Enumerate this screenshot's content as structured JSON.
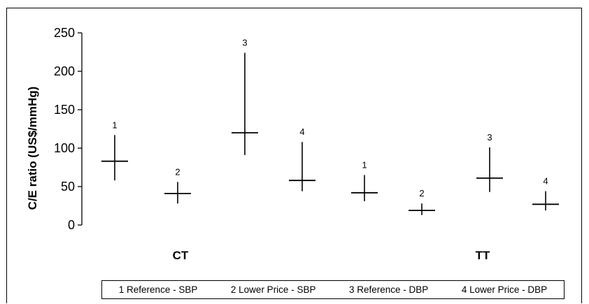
{
  "chart_data": {
    "type": "high-low-point",
    "ylabel": "C/E ratio (US$/mmHg)",
    "ylim": [
      0,
      250
    ],
    "yticks": [
      0,
      50,
      100,
      150,
      200,
      250
    ],
    "groups": [
      "CT",
      "TT"
    ],
    "series_keys": [
      "1",
      "2",
      "3",
      "4"
    ],
    "points": [
      {
        "group": "CT",
        "key": "1",
        "value": 83,
        "low": 58,
        "high": 117
      },
      {
        "group": "CT",
        "key": "2",
        "value": 41,
        "low": 28,
        "high": 56
      },
      {
        "group": "CT",
        "key": "3",
        "value": 120,
        "low": 91,
        "high": 224
      },
      {
        "group": "CT",
        "key": "4",
        "value": 58,
        "low": 44,
        "high": 108
      },
      {
        "group": "TT",
        "key": "1",
        "value": 42,
        "low": 31,
        "high": 65
      },
      {
        "group": "TT",
        "key": "2",
        "value": 19,
        "low": 13,
        "high": 28
      },
      {
        "group": "TT",
        "key": "3",
        "value": 61,
        "low": 43,
        "high": 101
      },
      {
        "group": "TT",
        "key": "4",
        "value": 27,
        "low": 19,
        "high": 44
      }
    ],
    "legend": [
      "1  Reference - SBP",
      "2  Lower Price - SBP",
      "3  Reference - DBP",
      "4  Lower Price - DBP"
    ]
  }
}
